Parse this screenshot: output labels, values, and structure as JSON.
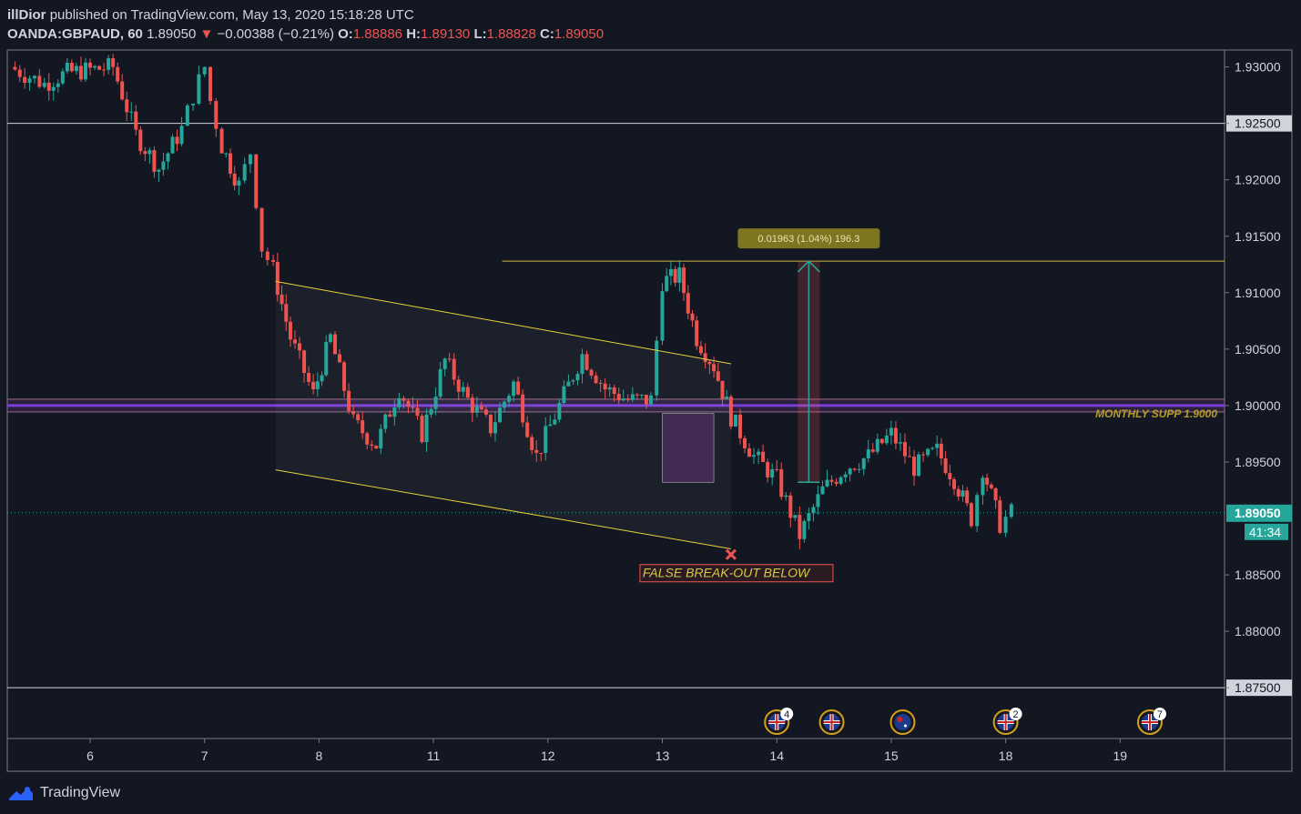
{
  "header": {
    "publisher": "illDior",
    "published_text": "published on TradingView.com, May 13, 2020 15:18:28 UTC",
    "symbol": "OANDA:GBPAUD, 60",
    "last": "1.89050",
    "arrow": "▼",
    "change": "−0.00388 (−0.21%)",
    "o_label": "O:",
    "o_value": "1.88886",
    "h_label": "H:",
    "h_value": "1.89130",
    "l_label": "L:",
    "l_value": "1.88828",
    "c_label": "C:",
    "c_value": "1.89050"
  },
  "footer": {
    "brand": "TradingView",
    "logo_icon": "tradingview-logo-icon"
  },
  "colors": {
    "background": "#131722",
    "up": "#26a69a",
    "down": "#ef5350",
    "channel": "#e6d23a",
    "monthly": "#7b3fd6",
    "measure": "#7e7520"
  },
  "chart_data": {
    "type": "candlestick",
    "title": "",
    "xlabel": "",
    "ylabel": "",
    "ylim": [
      1.8705,
      1.9315
    ],
    "x_ticks": [
      {
        "x": 6,
        "label": "6"
      },
      {
        "x": 7,
        "label": "7"
      },
      {
        "x": 8,
        "label": "8"
      },
      {
        "x": 9,
        "label": "11"
      },
      {
        "x": 10,
        "label": "12"
      },
      {
        "x": 11,
        "label": "13"
      },
      {
        "x": 12,
        "label": "14"
      },
      {
        "x": 13,
        "label": "15"
      },
      {
        "x": 14,
        "label": "18"
      },
      {
        "x": 15,
        "label": "19"
      }
    ],
    "y_ticks": [
      "1.93000",
      "1.92500",
      "1.92000",
      "1.91500",
      "1.91000",
      "1.90500",
      "1.90000",
      "1.89500",
      "1.88500",
      "1.88000",
      "1.87500"
    ],
    "current_price": "1.89050",
    "countdown": "41:34",
    "horizontal_levels": [
      1.925,
      1.875
    ],
    "monthly_support": {
      "value": 1.9,
      "label": "MONTHLY SUPP 1.9000"
    },
    "channel": {
      "upper": [
        [
          7.62,
          1.911
        ],
        [
          11.6,
          1.9037
        ]
      ],
      "lower": [
        [
          7.62,
          1.8943
        ],
        [
          11.6,
          1.8873
        ]
      ]
    },
    "measure": {
      "x": 12.28,
      "from": 1.8932,
      "to": 1.9128,
      "label": "0.01963 (1.04%) 196.3"
    },
    "resistance_line": {
      "x_start": 9.6,
      "value": 1.9128
    },
    "annotation": {
      "text": "FALSE BREAK-OUT BELOW",
      "x": 11.6,
      "value": 1.8868
    },
    "events": [
      {
        "x": 12.0,
        "icon": "uk-flag-icon",
        "count": "4"
      },
      {
        "x": 12.48,
        "icon": "uk-flag-icon",
        "count": ""
      },
      {
        "x": 13.1,
        "icon": "australia-flag-icon",
        "count": ""
      },
      {
        "x": 14.0,
        "icon": "uk-flag-icon",
        "count": "2"
      },
      {
        "x": 15.26,
        "icon": "uk-flag-icon",
        "count": "7"
      }
    ],
    "candles_anchors": [
      [
        5.3,
        1.93
      ],
      [
        5.6,
        1.9285
      ],
      [
        5.8,
        1.9295
      ],
      [
        6.2,
        1.93
      ],
      [
        6.4,
        1.924
      ],
      [
        6.6,
        1.921
      ],
      [
        6.8,
        1.9245
      ],
      [
        6.9,
        1.9275
      ],
      [
        7.0,
        1.93
      ],
      [
        7.05,
        1.927
      ],
      [
        7.15,
        1.923
      ],
      [
        7.3,
        1.9195
      ],
      [
        7.4,
        1.9225
      ],
      [
        7.5,
        1.914
      ],
      [
        7.6,
        1.912
      ],
      [
        7.75,
        1.906
      ],
      [
        7.95,
        1.901
      ],
      [
        8.1,
        1.906
      ],
      [
        8.3,
        1.8985
      ],
      [
        8.5,
        1.8965
      ],
      [
        8.7,
        1.9015
      ],
      [
        8.9,
        1.8975
      ],
      [
        9.1,
        1.904
      ],
      [
        9.3,
        1.9005
      ],
      [
        9.5,
        1.898
      ],
      [
        9.7,
        1.902
      ],
      [
        9.9,
        1.8955
      ],
      [
        10.1,
        1.9
      ],
      [
        10.3,
        1.9045
      ],
      [
        10.5,
        1.9015
      ],
      [
        10.7,
        1.9005
      ],
      [
        10.9,
        1.9005
      ],
      [
        11.0,
        1.911
      ],
      [
        11.15,
        1.9115
      ],
      [
        11.3,
        1.906
      ],
      [
        11.45,
        1.9035
      ],
      [
        11.6,
        1.899
      ],
      [
        11.8,
        1.8955
      ],
      [
        12.0,
        1.8935
      ],
      [
        12.2,
        1.8885
      ],
      [
        12.4,
        1.8925
      ],
      [
        12.6,
        1.8945
      ],
      [
        12.8,
        1.8955
      ],
      [
        13.0,
        1.8975
      ],
      [
        13.2,
        1.8945
      ],
      [
        13.4,
        1.896
      ],
      [
        13.55,
        1.8935
      ],
      [
        13.7,
        1.89
      ],
      [
        13.8,
        1.8945
      ],
      [
        13.95,
        1.8895
      ],
      [
        14.05,
        1.8905
      ]
    ]
  }
}
